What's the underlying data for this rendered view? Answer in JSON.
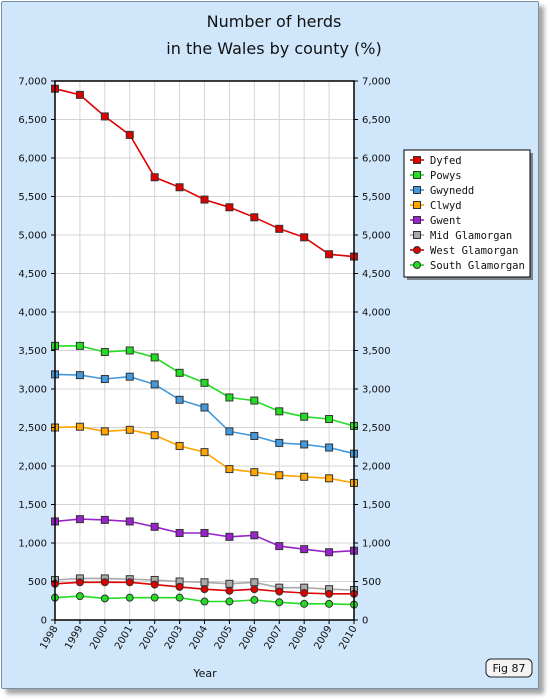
{
  "figure_label": "Fig 87",
  "chart_data": {
    "type": "line",
    "title": [
      "Number of herds",
      "in the Wales by county (%)"
    ],
    "xlabel": "Year",
    "ylabel": "",
    "x": [
      1998,
      1999,
      2000,
      2001,
      2002,
      2003,
      2004,
      2005,
      2006,
      2007,
      2008,
      2009,
      2010
    ],
    "x_tick_labels": [
      "1998",
      "1999",
      "2000",
      "2001",
      "2002",
      "2003",
      "2004",
      "2005",
      "2006",
      "2007",
      "2008",
      "2009",
      "2010"
    ],
    "ylim": [
      0,
      7000
    ],
    "y_ticks": [
      0,
      500,
      1000,
      1500,
      2000,
      2500,
      3000,
      3500,
      4000,
      4500,
      5000,
      5500,
      6000,
      6500,
      7000
    ],
    "y_tick_labels": [
      "0",
      "500",
      "1,000",
      "1,500",
      "2,000",
      "2,500",
      "3,000",
      "3,500",
      "4,000",
      "4,500",
      "5,000",
      "5,500",
      "6,000",
      "6,500",
      "7,000"
    ],
    "y_axis_both_sides": true,
    "grid": true,
    "legend_position": "right",
    "series": [
      {
        "name": "Dyfed",
        "color": "#e00000",
        "marker": "square",
        "values": [
          6900,
          6820,
          6540,
          6300,
          5750,
          5620,
          5460,
          5360,
          5230,
          5080,
          4970,
          4750,
          4720
        ]
      },
      {
        "name": "Powys",
        "color": "#22dd22",
        "marker": "square",
        "values": [
          3560,
          3560,
          3480,
          3500,
          3410,
          3210,
          3080,
          2890,
          2850,
          2710,
          2640,
          2610,
          2520
        ]
      },
      {
        "name": "Gwynedd",
        "color": "#4499dd",
        "marker": "square",
        "values": [
          3190,
          3180,
          3130,
          3160,
          3060,
          2860,
          2760,
          2450,
          2390,
          2300,
          2280,
          2240,
          2160
        ]
      },
      {
        "name": "Clwyd",
        "color": "#ffa500",
        "marker": "square",
        "values": [
          2500,
          2510,
          2450,
          2470,
          2400,
          2260,
          2180,
          1960,
          1920,
          1880,
          1860,
          1840,
          1780
        ]
      },
      {
        "name": "Gwent",
        "color": "#9922cc",
        "marker": "square",
        "values": [
          1280,
          1310,
          1300,
          1280,
          1210,
          1130,
          1130,
          1080,
          1100,
          960,
          920,
          880,
          900
        ]
      },
      {
        "name": "Mid Glamorgan",
        "color": "#aaaaaa",
        "marker": "square",
        "values": [
          520,
          540,
          540,
          530,
          520,
          500,
          490,
          470,
          490,
          420,
          420,
          400,
          390
        ]
      },
      {
        "name": "West Glamorgan",
        "color": "#e00000",
        "marker": "circle",
        "values": [
          470,
          490,
          490,
          490,
          460,
          430,
          400,
          380,
          400,
          370,
          350,
          340,
          340
        ]
      },
      {
        "name": "South Glamorgan",
        "color": "#22dd22",
        "marker": "circle",
        "values": [
          290,
          310,
          280,
          290,
          290,
          290,
          240,
          240,
          260,
          230,
          210,
          210,
          200
        ]
      }
    ]
  }
}
